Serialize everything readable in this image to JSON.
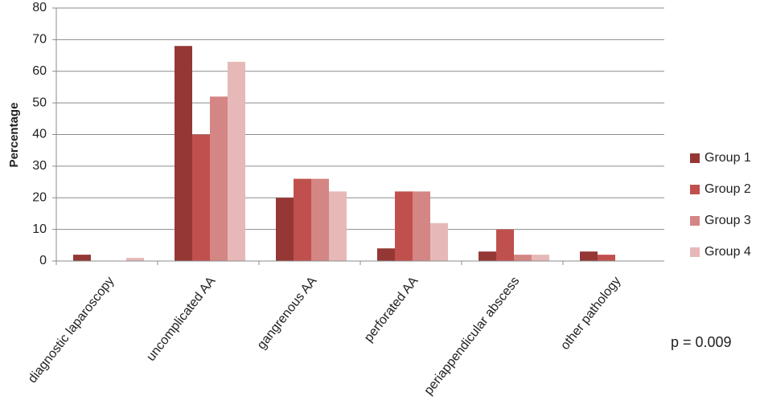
{
  "chart_data": {
    "type": "bar",
    "y_label": "Percentage",
    "annotation": "p = 0.009",
    "categories": [
      "diagnostic laparoscopy",
      "uncomplicated AA",
      "gangrenous AA",
      "perforated AA",
      "periappendicular abscess",
      "other pathology"
    ],
    "series": [
      {
        "name": "Group 1",
        "color": "#953735",
        "values": [
          2,
          68,
          20,
          4,
          3,
          3
        ]
      },
      {
        "name": "Group 2",
        "color": "#c0504d",
        "values": [
          0,
          40,
          26,
          22,
          10,
          2
        ]
      },
      {
        "name": "Group 3",
        "color": "#d48684",
        "values": [
          0,
          52,
          26,
          22,
          2,
          0
        ]
      },
      {
        "name": "Group 4",
        "color": "#e6b9b8",
        "values": [
          1,
          63,
          22,
          12,
          2,
          0
        ]
      }
    ],
    "ylim": [
      0,
      80
    ],
    "yticks": [
      0,
      10,
      20,
      30,
      40,
      50,
      60,
      70,
      80
    ],
    "grid": true,
    "legend": "right"
  }
}
